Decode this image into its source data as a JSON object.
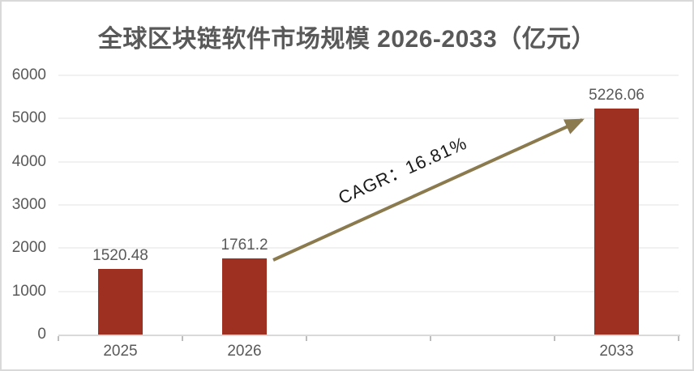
{
  "chart_data": {
    "type": "bar",
    "title": "全球区块链软件市场规模 2026-2033（亿元）",
    "categories": [
      "2025",
      "2026",
      "2033"
    ],
    "values": [
      1520.48,
      1761.2,
      5226.06
    ],
    "value_labels": [
      "1520.48",
      "1761.2",
      "5226.06"
    ],
    "slot_labels": [
      "2025",
      "2026",
      "",
      "",
      "2033"
    ],
    "slot_of_bar": [
      0,
      1,
      4
    ],
    "xlabel": "",
    "ylabel": "",
    "ylim": [
      0,
      6000
    ],
    "yticks": [
      0,
      1000,
      2000,
      3000,
      4000,
      5000,
      6000
    ],
    "grid": true,
    "legend": "none",
    "annotation": "CAGR：16.81%",
    "colors": {
      "bar": "#9E3022",
      "arrow": "#8A7A4E",
      "title_text": "#595959",
      "axis_text": "#595959",
      "label_text": "#595959",
      "annotation_text": "#1A1A1A",
      "gridline": "#F1F1F1",
      "axis_line": "#D9D9D9",
      "tick": "#BDBDBD",
      "frame_border": "#D9D9D9",
      "background": "#FFFFFF"
    }
  }
}
